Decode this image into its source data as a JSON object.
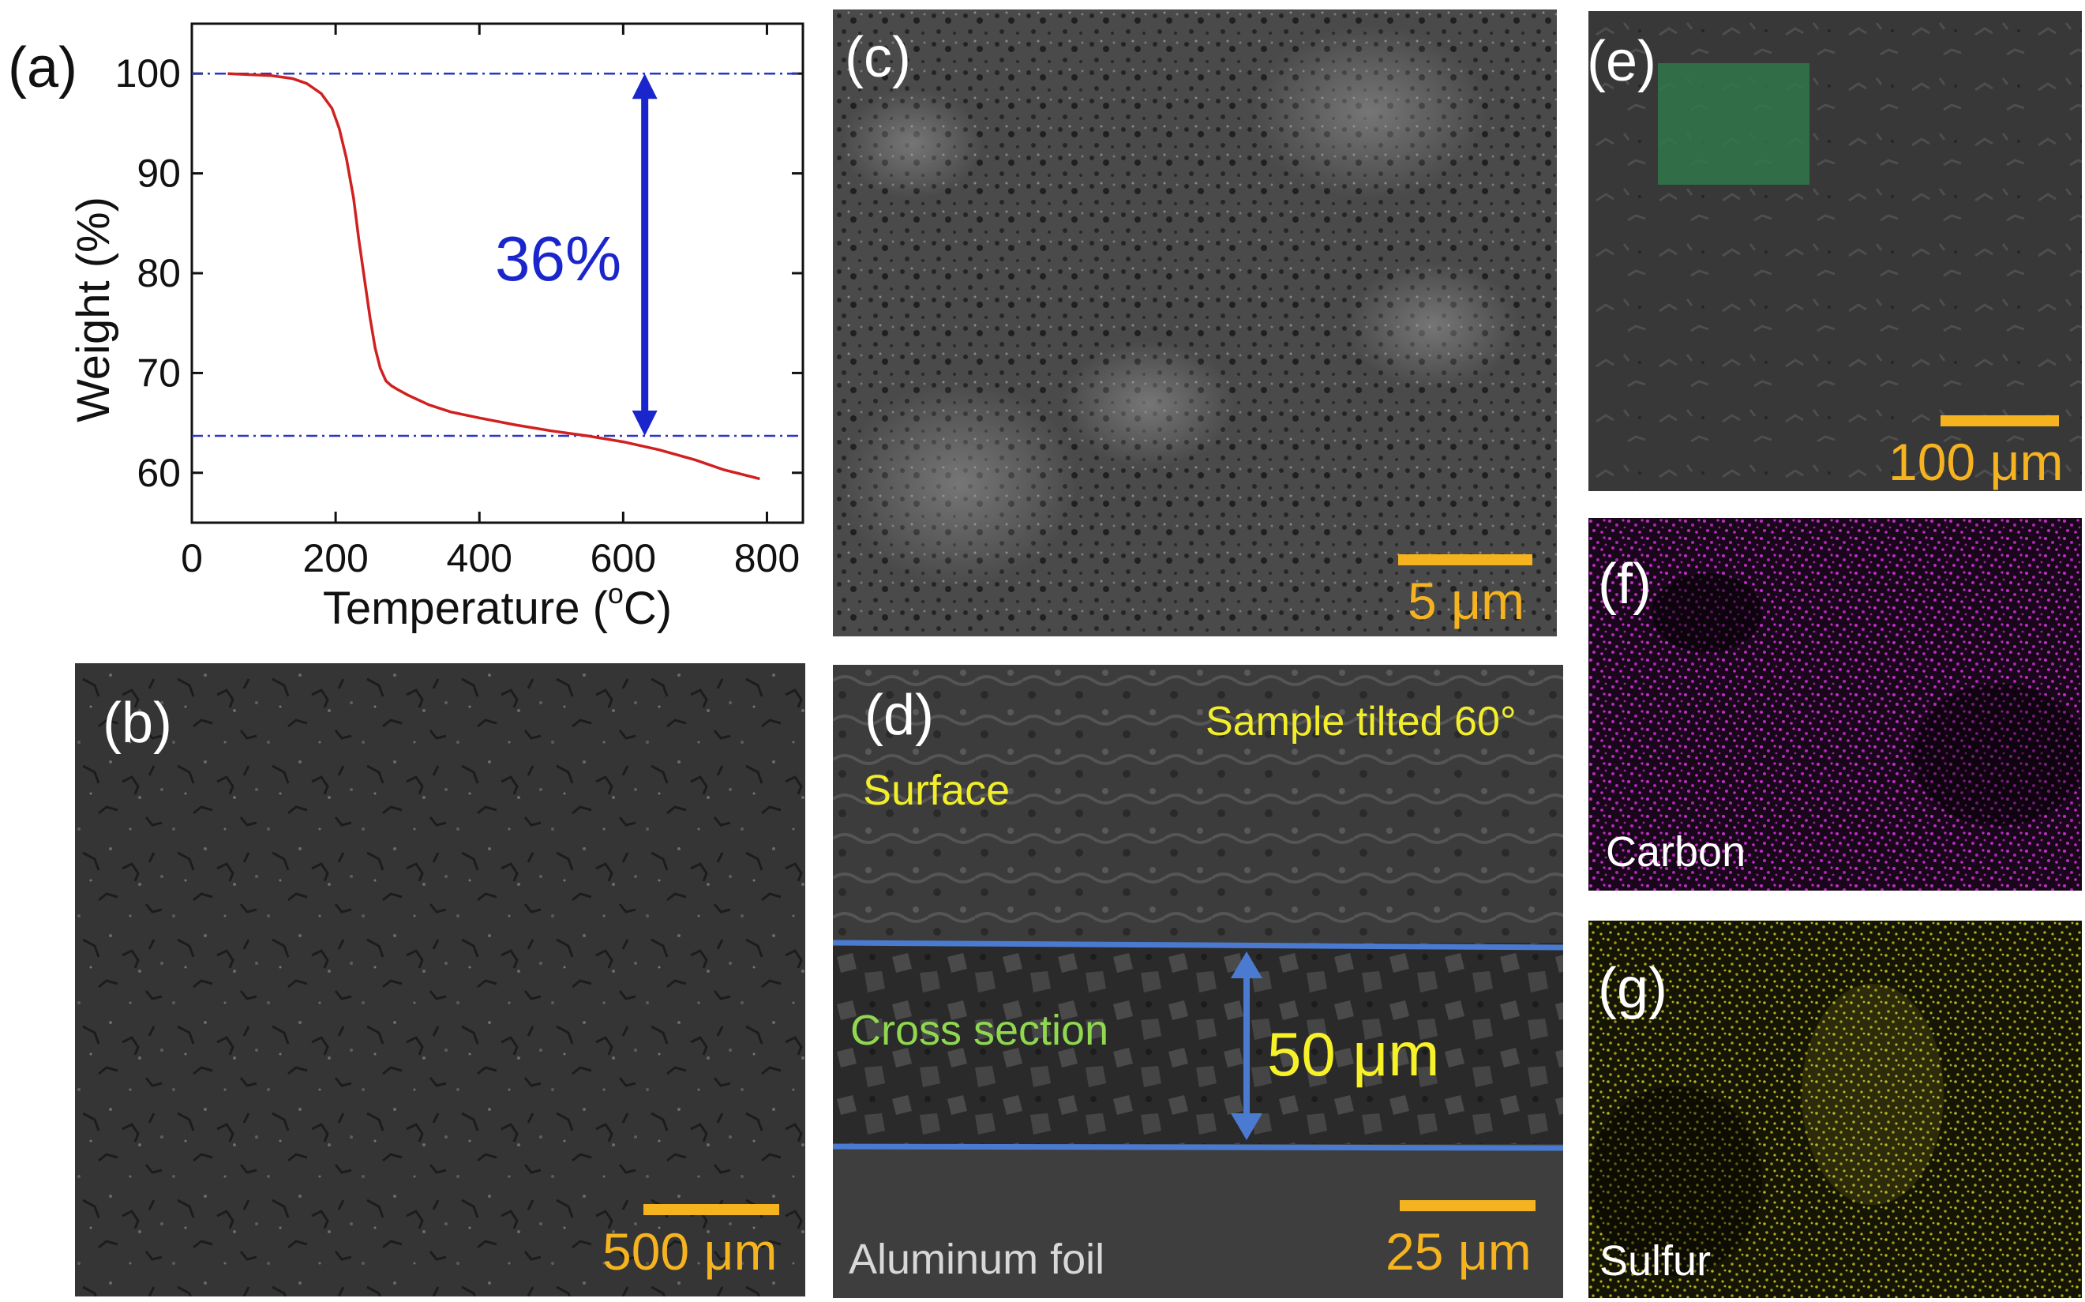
{
  "panel_a": {
    "label": "(a)",
    "annotation": "36%",
    "chart_data": {
      "type": "line",
      "xlabel": "Temperature (°C)",
      "xlabel_parts": [
        "Temperature (",
        "o",
        "C)"
      ],
      "ylabel": "Weight (%)",
      "xlim": [
        0,
        850
      ],
      "ylim": [
        55,
        105
      ],
      "xticks": [
        0,
        200,
        400,
        600,
        800
      ],
      "yticks": [
        60,
        70,
        80,
        90,
        100
      ],
      "series": [
        {
          "color": "#d0201f",
          "x": [
            50,
            80,
            110,
            140,
            160,
            180,
            195,
            205,
            215,
            225,
            232,
            240,
            248,
            255,
            262,
            270,
            278,
            285,
            300,
            330,
            360,
            400,
            450,
            500,
            550,
            600,
            650,
            700,
            740,
            790
          ],
          "y": [
            100,
            99.9,
            99.8,
            99.5,
            99.0,
            98.0,
            96.5,
            94.5,
            91.5,
            87.5,
            83.5,
            79.5,
            75.5,
            72.5,
            70.5,
            69.2,
            68.7,
            68.4,
            67.8,
            66.8,
            66.1,
            65.5,
            64.8,
            64.2,
            63.7,
            63.1,
            62.3,
            61.3,
            60.3,
            59.4
          ]
        }
      ],
      "reference_lines": [
        100,
        63.7
      ],
      "double_arrow": {
        "x": 630,
        "y_top": 100,
        "y_bottom": 63.7,
        "color": "#1a26cc"
      }
    }
  },
  "panel_b": {
    "label": "(b)",
    "scale_text": "500 μm"
  },
  "panel_c": {
    "label": "(c)",
    "scale_text": "5 μm"
  },
  "panel_d": {
    "label": "(d)",
    "tilt_note": "Sample tilted 60°",
    "surface": "Surface",
    "cross_section": "Cross section",
    "thickness": "50 μm",
    "foil": "Aluminum foil",
    "scale_text": "25 μm"
  },
  "panel_e": {
    "label": "(e)",
    "scale_text": "100 μm"
  },
  "panel_f": {
    "label": "(f)",
    "element": "Carbon",
    "color": "#c02cc8"
  },
  "panel_g": {
    "label": "(g)",
    "element": "Sulfur",
    "color": "#b8b020"
  }
}
